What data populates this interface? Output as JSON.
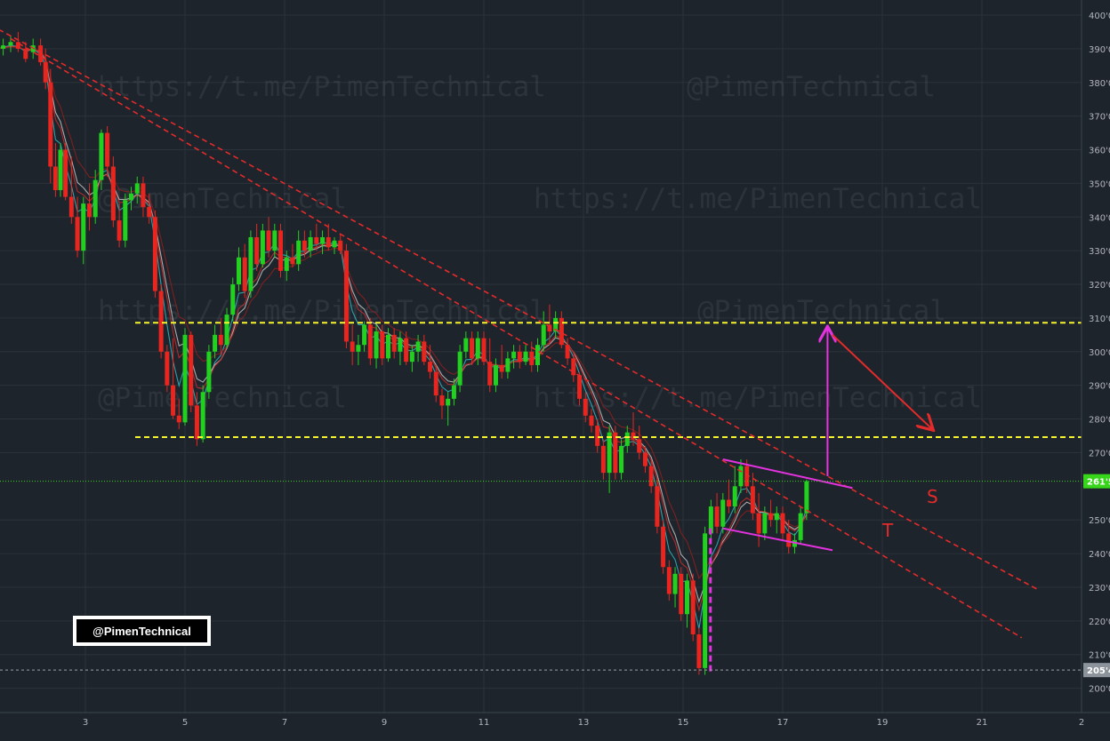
{
  "colors": {
    "background": "#1e242b",
    "grid": "#2a323b",
    "bull": "#22d11f",
    "bear": "#e8261f",
    "trendline": "#e32b2b",
    "horizontal_level": "#f5f531",
    "pattern": "#e532e0",
    "arrow_down": "#e32b2b",
    "current_price_line": "#37d61b",
    "ma_fast": "#2fb6c2",
    "ma_mid": "#c3c3c3",
    "ma_slow_a": "#c82d2d",
    "ma_slow_b": "#8e2020"
  },
  "watermarks": [
    "https://t.me/PimenTechnical",
    "@PimenTechnical",
    "@PimenTechnical",
    "https://t.me/PimenTechnical",
    "https://t.me/PimenTechnical",
    "@PimenTechnical",
    "@PimenTechnical",
    "https://t.me/PimenTechnical"
  ],
  "badge": {
    "text": "@PimenTechnical"
  },
  "annotations": {
    "label_s": "S",
    "label_t": "T"
  },
  "chart_data": {
    "type": "candlestick",
    "x_ticks": [
      "3",
      "5",
      "7",
      "9",
      "11",
      "13",
      "15",
      "17",
      "19",
      "21",
      "2"
    ],
    "y_ticks": [
      "400'0",
      "390'0",
      "380'0",
      "370'0",
      "360'0",
      "350'0",
      "340'0",
      "330'0",
      "320'0",
      "310'0",
      "300'0",
      "290'0",
      "280'0",
      "270'0",
      "250'0",
      "240'0",
      "230'0",
      "220'0",
      "210'0",
      "200'0"
    ],
    "ylim": [
      198,
      402
    ],
    "xlim": [
      1.1,
      22.1
    ],
    "price_labels": [
      {
        "text": "261'5",
        "value": 261.5,
        "kind": "current"
      },
      {
        "text": "205'4",
        "value": 205.4,
        "kind": "low"
      }
    ],
    "horizontal_levels": [
      {
        "value": 308.6,
        "x_start": 4.0
      },
      {
        "value": 274.6,
        "x_start": 4.0
      }
    ],
    "trendlines": [
      {
        "label": "S",
        "points": [
          [
            1.1,
            397
          ],
          [
            22.1,
            229.5
          ]
        ]
      },
      {
        "label": "T",
        "points": [
          [
            1.5,
            393
          ],
          [
            21.8,
            215
          ]
        ]
      }
    ],
    "flag_lines": [
      [
        [
          15.8,
          268
        ],
        [
          18.4,
          259.5
        ]
      ],
      [
        [
          15.8,
          247.5
        ],
        [
          18.0,
          241
        ]
      ]
    ],
    "arrows": [
      {
        "kind": "target-up",
        "from": [
          17.9,
          263
        ],
        "to": [
          17.9,
          307
        ]
      },
      {
        "kind": "down",
        "from": [
          18.0,
          305
        ],
        "to": [
          20.0,
          277
        ]
      }
    ],
    "pole": {
      "x": 15.55,
      "from": 205,
      "to": 248
    },
    "candles_note": "approximate OHLC read from the chart, x in day units",
    "candles": [
      [
        1.2,
        386,
        392,
        384,
        390
      ],
      [
        1.35,
        390,
        393,
        388,
        391
      ],
      [
        1.5,
        391,
        394,
        389,
        392
      ],
      [
        1.65,
        392,
        395,
        389,
        390
      ],
      [
        1.8,
        390,
        392,
        386,
        387
      ],
      [
        1.95,
        389,
        393,
        387,
        391
      ],
      [
        2.1,
        391,
        393,
        385,
        386
      ],
      [
        2.2,
        386,
        390,
        378,
        380
      ],
      [
        2.3,
        380,
        384,
        350,
        355
      ],
      [
        2.4,
        355,
        362,
        346,
        348
      ],
      [
        2.5,
        348,
        362,
        346,
        360
      ],
      [
        2.6,
        360,
        362,
        345,
        346
      ],
      [
        2.72,
        346,
        358,
        338,
        340
      ],
      [
        2.84,
        340,
        346,
        328,
        330
      ],
      [
        2.96,
        330,
        346,
        326,
        344
      ],
      [
        3.08,
        344,
        350,
        336,
        340
      ],
      [
        3.2,
        340,
        354,
        338,
        351
      ],
      [
        3.32,
        351,
        366,
        348,
        365
      ],
      [
        3.44,
        365,
        367,
        352,
        355
      ],
      [
        3.56,
        355,
        358,
        337,
        339
      ],
      [
        3.68,
        339,
        344,
        331,
        333
      ],
      [
        3.8,
        333,
        347,
        331,
        345
      ],
      [
        3.92,
        345,
        349,
        342,
        347
      ],
      [
        4.04,
        347,
        352,
        344,
        350
      ],
      [
        4.16,
        350,
        352,
        340,
        343
      ],
      [
        4.28,
        343,
        347,
        338,
        340
      ],
      [
        4.4,
        340,
        342,
        316,
        318
      ],
      [
        4.52,
        318,
        320,
        298,
        300
      ],
      [
        4.64,
        300,
        302,
        288,
        290
      ],
      [
        4.76,
        290,
        304,
        280,
        281
      ],
      [
        4.88,
        281,
        286,
        277,
        279
      ],
      [
        5.0,
        279,
        307,
        278,
        305
      ],
      [
        5.12,
        305,
        306,
        282,
        284
      ],
      [
        5.24,
        284,
        288,
        272,
        274
      ],
      [
        5.36,
        274,
        290,
        273,
        288
      ],
      [
        5.48,
        288,
        302,
        286,
        300
      ],
      [
        5.6,
        300,
        308,
        298,
        305
      ],
      [
        5.72,
        305,
        310,
        299,
        302
      ],
      [
        5.84,
        302,
        313,
        301,
        311
      ],
      [
        5.96,
        311,
        322,
        309,
        320
      ],
      [
        6.08,
        320,
        331,
        318,
        328
      ],
      [
        6.2,
        328,
        332,
        316,
        318
      ],
      [
        6.32,
        318,
        336,
        316,
        334
      ],
      [
        6.44,
        334,
        338,
        324,
        326
      ],
      [
        6.56,
        326,
        338,
        325,
        336
      ],
      [
        6.68,
        336,
        340,
        328,
        330
      ],
      [
        6.8,
        330,
        338,
        328,
        336
      ],
      [
        6.92,
        336,
        338,
        322,
        324
      ],
      [
        7.04,
        324,
        330,
        321,
        328
      ],
      [
        7.16,
        328,
        332,
        325,
        326
      ],
      [
        7.28,
        326,
        336,
        324,
        333
      ],
      [
        7.4,
        333,
        336,
        328,
        330
      ],
      [
        7.52,
        330,
        336,
        328,
        334
      ],
      [
        7.64,
        334,
        338,
        330,
        332
      ],
      [
        7.76,
        332,
        336,
        329,
        334
      ],
      [
        7.88,
        334,
        338,
        330,
        331
      ],
      [
        8.0,
        331,
        334,
        329,
        333
      ],
      [
        8.12,
        333,
        335,
        329,
        330
      ],
      [
        8.24,
        330,
        332,
        301,
        303
      ],
      [
        8.36,
        303,
        308,
        296,
        300
      ],
      [
        8.48,
        300,
        305,
        296,
        302
      ],
      [
        8.6,
        302,
        309,
        300,
        308
      ],
      [
        8.72,
        308,
        310,
        296,
        298
      ],
      [
        8.84,
        298,
        308,
        295,
        306
      ],
      [
        8.96,
        306,
        308,
        296,
        298
      ],
      [
        9.08,
        298,
        307,
        297,
        305
      ],
      [
        9.2,
        305,
        307,
        298,
        300
      ],
      [
        9.32,
        300,
        306,
        296,
        304
      ],
      [
        9.44,
        304,
        306,
        296,
        297
      ],
      [
        9.56,
        297,
        302,
        294,
        300
      ],
      [
        9.68,
        300,
        305,
        297,
        303
      ],
      [
        9.8,
        303,
        305,
        296,
        297
      ],
      [
        9.92,
        297,
        302,
        292,
        294
      ],
      [
        10.04,
        294,
        296,
        285,
        287
      ],
      [
        10.16,
        287,
        289,
        280,
        284
      ],
      [
        10.28,
        284,
        288,
        278,
        286
      ],
      [
        10.4,
        286,
        292,
        284,
        290
      ],
      [
        10.52,
        290,
        302,
        288,
        300
      ],
      [
        10.64,
        300,
        306,
        298,
        304
      ],
      [
        10.76,
        304,
        306,
        296,
        298
      ],
      [
        10.88,
        298,
        306,
        296,
        304
      ],
      [
        11.0,
        304,
        306,
        296,
        297
      ],
      [
        11.12,
        297,
        304,
        288,
        290
      ],
      [
        11.24,
        290,
        298,
        288,
        296
      ],
      [
        11.36,
        296,
        302,
        292,
        294
      ],
      [
        11.48,
        294,
        300,
        292,
        298
      ],
      [
        11.6,
        298,
        302,
        295,
        300
      ],
      [
        11.72,
        300,
        302,
        295,
        297
      ],
      [
        11.84,
        297,
        302,
        296,
        300
      ],
      [
        11.96,
        300,
        303,
        294,
        296
      ],
      [
        12.08,
        296,
        304,
        294,
        302
      ],
      [
        12.2,
        302,
        312,
        300,
        308
      ],
      [
        12.32,
        308,
        314,
        302,
        306
      ],
      [
        12.44,
        306,
        312,
        304,
        310
      ],
      [
        12.56,
        310,
        312,
        301,
        302
      ],
      [
        12.68,
        302,
        304,
        296,
        298
      ],
      [
        12.8,
        298,
        299,
        291,
        293
      ],
      [
        12.92,
        293,
        294,
        284,
        286
      ],
      [
        13.04,
        286,
        288,
        279,
        281
      ],
      [
        13.16,
        281,
        283,
        276,
        278
      ],
      [
        13.28,
        278,
        280,
        270,
        272
      ],
      [
        13.4,
        272,
        274,
        262,
        264
      ],
      [
        13.52,
        264,
        278,
        258,
        276
      ],
      [
        13.64,
        276,
        278,
        262,
        264
      ],
      [
        13.76,
        264,
        274,
        262,
        272
      ],
      [
        13.88,
        272,
        278,
        270,
        276
      ],
      [
        14.0,
        276,
        282,
        272,
        274
      ],
      [
        14.12,
        274,
        278,
        268,
        270
      ],
      [
        14.24,
        270,
        272,
        264,
        266
      ],
      [
        14.36,
        266,
        268,
        258,
        260
      ],
      [
        14.48,
        260,
        262,
        246,
        248
      ],
      [
        14.6,
        248,
        250,
        234,
        236
      ],
      [
        14.72,
        236,
        238,
        226,
        228
      ],
      [
        14.84,
        228,
        236,
        224,
        234
      ],
      [
        14.96,
        234,
        236,
        220,
        222
      ],
      [
        15.08,
        222,
        234,
        218,
        232
      ],
      [
        15.2,
        232,
        234,
        214,
        216
      ],
      [
        15.32,
        216,
        218,
        204,
        206
      ],
      [
        15.44,
        206,
        248,
        204,
        246
      ],
      [
        15.56,
        246,
        256,
        244,
        254
      ],
      [
        15.68,
        254,
        258,
        246,
        248
      ],
      [
        15.8,
        248,
        258,
        246,
        256
      ],
      [
        15.92,
        256,
        262,
        252,
        254
      ],
      [
        16.04,
        254,
        266,
        252,
        260
      ],
      [
        16.16,
        260,
        268,
        258,
        266
      ],
      [
        16.28,
        266,
        268,
        258,
        260
      ],
      [
        16.4,
        260,
        264,
        250,
        252
      ],
      [
        16.52,
        252,
        258,
        242,
        246
      ],
      [
        16.64,
        246,
        254,
        244,
        252
      ],
      [
        16.76,
        252,
        256,
        248,
        250
      ],
      [
        16.88,
        250,
        254,
        246,
        252
      ],
      [
        17.0,
        252,
        254,
        244,
        246
      ],
      [
        17.12,
        246,
        250,
        240,
        242
      ],
      [
        17.24,
        242,
        246,
        240,
        244
      ],
      [
        17.36,
        244,
        254,
        243,
        252
      ],
      [
        17.48,
        252,
        262,
        250,
        261.5
      ]
    ]
  }
}
